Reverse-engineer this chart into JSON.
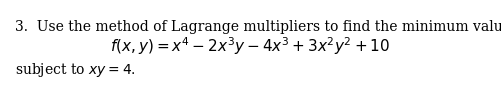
{
  "line1_num": "3.",
  "line1_text": "Use the method of Lagrange multipliers to find the minimum value of",
  "line2": "$f(x, y) = x^4 - 2x^3y - 4x^3 + 3x^2y^2 + 10$",
  "line3_plain": "subject to ",
  "line3_math": "$xy = 4.$",
  "bg_color": "#ffffff",
  "text_color": "#000000",
  "fontsize_body": 10.0,
  "fontsize_math": 11.0,
  "fig_width": 5.01,
  "fig_height": 0.92,
  "dpi": 100
}
